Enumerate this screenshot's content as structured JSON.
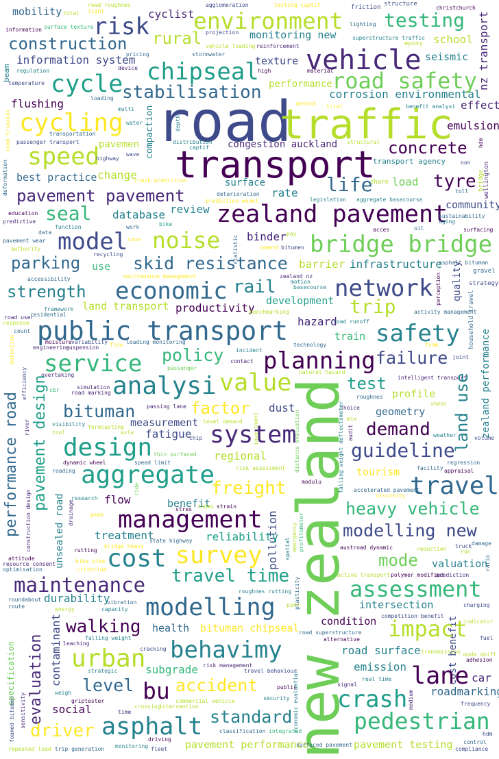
{
  "palette": {
    "dark_purple": "#440154",
    "indigo": "#482878",
    "slate": "#3e4a89",
    "blue": "#31688e",
    "teal": "#26828e",
    "sea": "#1f9e89",
    "green": "#35b779",
    "lime": "#6ece58",
    "yellowgreen": "#b5de2b",
    "yellow": "#fde725"
  },
  "words": {
    "road": "road",
    "traffic": "traffic",
    "transport": "transport",
    "new_zealand": "new zealand",
    "zealand_pavement": "zealand pavement",
    "public_transport": "public transport",
    "bridge_bridge": "bridge bridge",
    "vehicle": "vehicle",
    "road_safety": "road safety",
    "environment": "environment",
    "risk": "risk",
    "construction": "construction",
    "chipseal": "chipseal",
    "cycle": "cycle",
    "cycling": "cycling",
    "speed": "speed",
    "stabilisation": "stabilisation",
    "testing": "testing",
    "rural": "rural",
    "concrete": "concrete",
    "life": "life",
    "tyre": "tyre",
    "pavement_pavement": "pavement pavement",
    "model": "model",
    "noise": "noise",
    "parking": "parking",
    "skid_resistance": "skid resistance",
    "strength": "strength",
    "economic": "economic",
    "network": "network",
    "safety": "safety",
    "planning": "planning",
    "failure": "failure",
    "service": "service",
    "analysi": "analysi",
    "value": "value",
    "system": "system",
    "design": "design",
    "aggregate": "aggregate",
    "travel": "travel",
    "management": "management",
    "cost": "cost",
    "survey": "survey",
    "maintenance": "maintenance",
    "modelling": "modelling",
    "behavimy": "behavimy",
    "urban": "urban",
    "walking": "walking",
    "bu": "bu",
    "asphalt": "asphalt",
    "crash": "crash",
    "pedestrian": "pedestrian",
    "lane": "lane",
    "assessment": "assessment",
    "impact": "impact",
    "mode": "mode",
    "heavy_vehicle": "heavy vehicle",
    "modelling_new": "modelling new",
    "guideline": "guideline",
    "demand": "demand",
    "land_use": "land use",
    "performance_road": "performance road",
    "pavement_design": "pavement design",
    "evaluation": "evaluation",
    "travel_time": "travel time",
    "accident": "accident",
    "standard": "standard",
    "driver": "driver",
    "freight": "freight",
    "level": "level",
    "bituman": "bituman",
    "factor": "factor",
    "policy": "policy",
    "rail": "rail",
    "trip": "trip",
    "seal": "seal",
    "mobility": "mobility",
    "information_system": "information system",
    "flushing": "flushing",
    "best_practice": "best practice",
    "emulsion": "emulsion",
    "effect": "effect",
    "school": "school",
    "seismic": "seismic",
    "congestion_auckland": "congestion auckland",
    "corrosion_environmental": "corrosion environmental",
    "load": "load",
    "community": "community",
    "surface": "surface",
    "rate": "rate",
    "review": "review",
    "database": "database",
    "infrastructure": "infrastructure",
    "land_transport": "land transport",
    "productivity": "productivity",
    "development": "development",
    "hazard": "hazard",
    "train": "train",
    "test": "test",
    "profile": "profile",
    "geometry": "geometry",
    "dust": "dust",
    "fatigue": "fatigue",
    "measurement": "measurement",
    "regional": "regional",
    "tourism": "tourism",
    "flow": "flow",
    "benefit": "benefit",
    "treatment": "treatment",
    "reliability": "reliability",
    "valuation": "valuation",
    "intersection": "intersection",
    "durability": "durability",
    "health": "health",
    "bituman_chipseal": "bituman chipseal",
    "condition": "condition",
    "subgrade": "subgrade",
    "emission": "emission",
    "road_surface": "road surface",
    "car": "car",
    "roadmarking": "roadmarking",
    "social": "social",
    "pavement_performance": "pavement performance",
    "pavement_testing": "pavement testing",
    "texture": "texture",
    "performance": "performance",
    "monitoring_new": "monitoring new",
    "nz_transport": "nz transport",
    "zealand_performance": "zealand performance",
    "quality": "quality",
    "pollution": "pollution",
    "unsealed_road": "unsealed road",
    "cost_benefit": "cost benefit",
    "specification": "specification",
    "contaminant": "contaminant",
    "compaction": "compaction",
    "binder": "binder",
    "transport_agency": "transport agency",
    "change": "change",
    "agglomeration": "agglomeration",
    "cyclist": "cyclist",
    "christchurch": "christchurch",
    "structure": "structure",
    "friction": "friction",
    "testing_captif": "testing captif",
    "road_roughnes": "road roughnes",
    "light": "light",
    "total": "total",
    "information": "information",
    "surface_texture": "surface texture",
    "projection": "projection",
    "lighting": "lighting",
    "superstructure_traffic": "superstructure traffic",
    "epoxy": "epoxy",
    "vehicle_loading": "vehicle loading",
    "reinforcement": "reinforcement",
    "pricing": "pricing",
    "stormwater": "stormwater",
    "beam": "beam",
    "regulation": "regulation",
    "device": "device",
    "high": "high",
    "material": "material",
    "temperature": "temperature",
    "loading": "loading",
    "method": "method",
    "trial": "trial",
    "benefit_analysi": "benefit analysi",
    "multi": "multi",
    "water": "water",
    "depth": "depth",
    "transportation": "transportation",
    "passenger_transport": "passenger transport",
    "distribution": "distribution",
    "captif": "captif",
    "structural": "structural",
    "pavemen": "pavemen",
    "wave": "wave",
    "highway": "highway",
    "non": "non",
    "deformation": "deformation",
    "load_triaxial": "load triaxial",
    "deterioration": "deterioration",
    "prediction_model": "prediction model",
    "crash_prediction": "crash prediction",
    "share": "share",
    "toll": "toll",
    "wellington": "wellington",
    "education": "education",
    "predictive": "predictive",
    "function": "function",
    "work": "work",
    "bike": "bike",
    "legislation": "legislation",
    "aggregate_basecourse": "aggregate basecourse",
    "sustainability": "sustainability",
    "aging": "aging",
    "surfacing": "surfacing",
    "data": "data",
    "pavement_wear": "pavement wear",
    "authority": "authority",
    "cone": "cone",
    "recycling": "recycling",
    "use": "use",
    "statistic": "statistic",
    "cement": "cement",
    "bitumen": "bitumen",
    "acces": "acces",
    "oil": "oil",
    "pay": "pay",
    "asphalt_bituman": "asphalt bituman",
    "accessibility": "accessibility",
    "maintenance_management": "maintenance management",
    "gravel": "gravel",
    "zealand_nz": "zealand nz",
    "motion": "motion",
    "barrier": "barrier",
    "basecourse": "basecourse",
    "strategy": "strategy",
    "perception": "perception",
    "framework": "framework",
    "road_user": "road user",
    "residential": "residential",
    "response": "response",
    "benchmarking": "benchmarking",
    "activity_management": "activity management",
    "household_travel": "household travel",
    "count": "count",
    "moisture": "moisture",
    "variability": "variability",
    "loading_monitoring": "loading monitoring",
    "engineering": "engineering",
    "suspension": "suspension",
    "detection": "detection",
    "flow_small": "flow",
    "technology": "technology",
    "road_runoff": "road runoff",
    "incident": "incident",
    "contact": "contact",
    "foam": "foam",
    "joint": "joint",
    "passenger": "passenger",
    "overtaking": "overtaking",
    "natural_hazard": "natural hazard",
    "intelligent_transport": "intelligent transport",
    "efficiency": "efficiency",
    "simulation": "simulation",
    "road_marking": "road marking",
    "cbr": "cbr",
    "roughnes": "roughnes",
    "shear": "shear",
    "river": "river",
    "passing_lane": "passing lane",
    "choice": "choice",
    "mix": "mix",
    "visibility": "visibility",
    "forecasting": "forecasting",
    "axle": "axle",
    "tool": "tool",
    "level_demand": "level demand",
    "investment": "investment",
    "audit": "audit",
    "weather": "weather",
    "volume": "volume",
    "chip": "chip",
    "distance_evaluation": "distance evaluation",
    "falling_weight_deflectometer": "falling weight deflectometer",
    "dynamic_wheel": "dynamic wheel",
    "speed_limit": "speed limit",
    "thin_surfaced": "thin surfaced",
    "risk_assessment": "risk assessment",
    "facility": "facility",
    "appraisal": "appraisal",
    "regression": "regression",
    "roading": "roading",
    "modulu": "modulu",
    "research": "research",
    "stres": "stres",
    "accelerated_pavement": "accelerated pavement",
    "viscosity": "viscosity",
    "construction_design": "construction design",
    "drainage": "drainage",
    "index": "index",
    "strain": "strain",
    "peak": "peak",
    "ride": "ride",
    "state_highway": "state highway",
    "rutting": "rutting",
    "bridge_heavy": "bridge heavy",
    "spatial": "spatial",
    "emergency": "emergency",
    "profilometer": "profilometer",
    "austroad_dynamic": "austroad dynamic",
    "reduction": "reduction",
    "truck": "truck",
    "damage": "damage",
    "run": "run",
    "attitude": "attitude",
    "bike_bike": "bike bike",
    "resource_consent": "resource consent",
    "criterium": "criterium",
    "optimisation": "optimisation",
    "active_transport": "active transport",
    "polymer_modified": "polymer modified",
    "prediction": "prediction",
    "roughnes_rutting": "roughnes rutting",
    "plasticity": "plasticity",
    "roundabout": "roundabout",
    "route": "route",
    "energy": "energy",
    "vibration": "vibration",
    "capacity": "capacity",
    "path": "path",
    "charging": "charging",
    "competition_benefit": "competition benefit",
    "indicator": "indicator",
    "falling_weight": "falling weight",
    "leaching": "leaching",
    "cracking": "cracking",
    "road_superstructure": "road superstructure",
    "alternative": "alternative",
    "fuel": "fuel",
    "transmission": "transmission",
    "mode_shift": "mode shift",
    "adhesion": "adhesion",
    "strategic": "strategic",
    "risk_management": "risk management",
    "travel_behaviour": "travel behaviour",
    "economic_evaluation": "economic evaluation",
    "real_time": "real time",
    "weigh": "weigh",
    "signal": "signal",
    "public": "public",
    "security": "security",
    "griptester": "griptester",
    "time": "time",
    "crossing": "crossing",
    "intervention": "intervention",
    "commercial_vehicle": "commercial vehicle",
    "classification": "classification",
    "integrated": "integrated",
    "medium": "medium",
    "frequency": "frequency",
    "sensitivity": "sensitivity",
    "foamed_bitumen": "foamed bitumen",
    "repeated_load": "repeated load",
    "trip_generation": "trip generation",
    "monitoring": "monitoring",
    "fleet": "fleet",
    "driving": "driving",
    "surfaced_pavement": "surfaced pavement",
    "control": "control",
    "compliance": "compliance",
    "hdm": "hdm",
    "ratio": "ratio",
    "bridge": "bridge"
  }
}
